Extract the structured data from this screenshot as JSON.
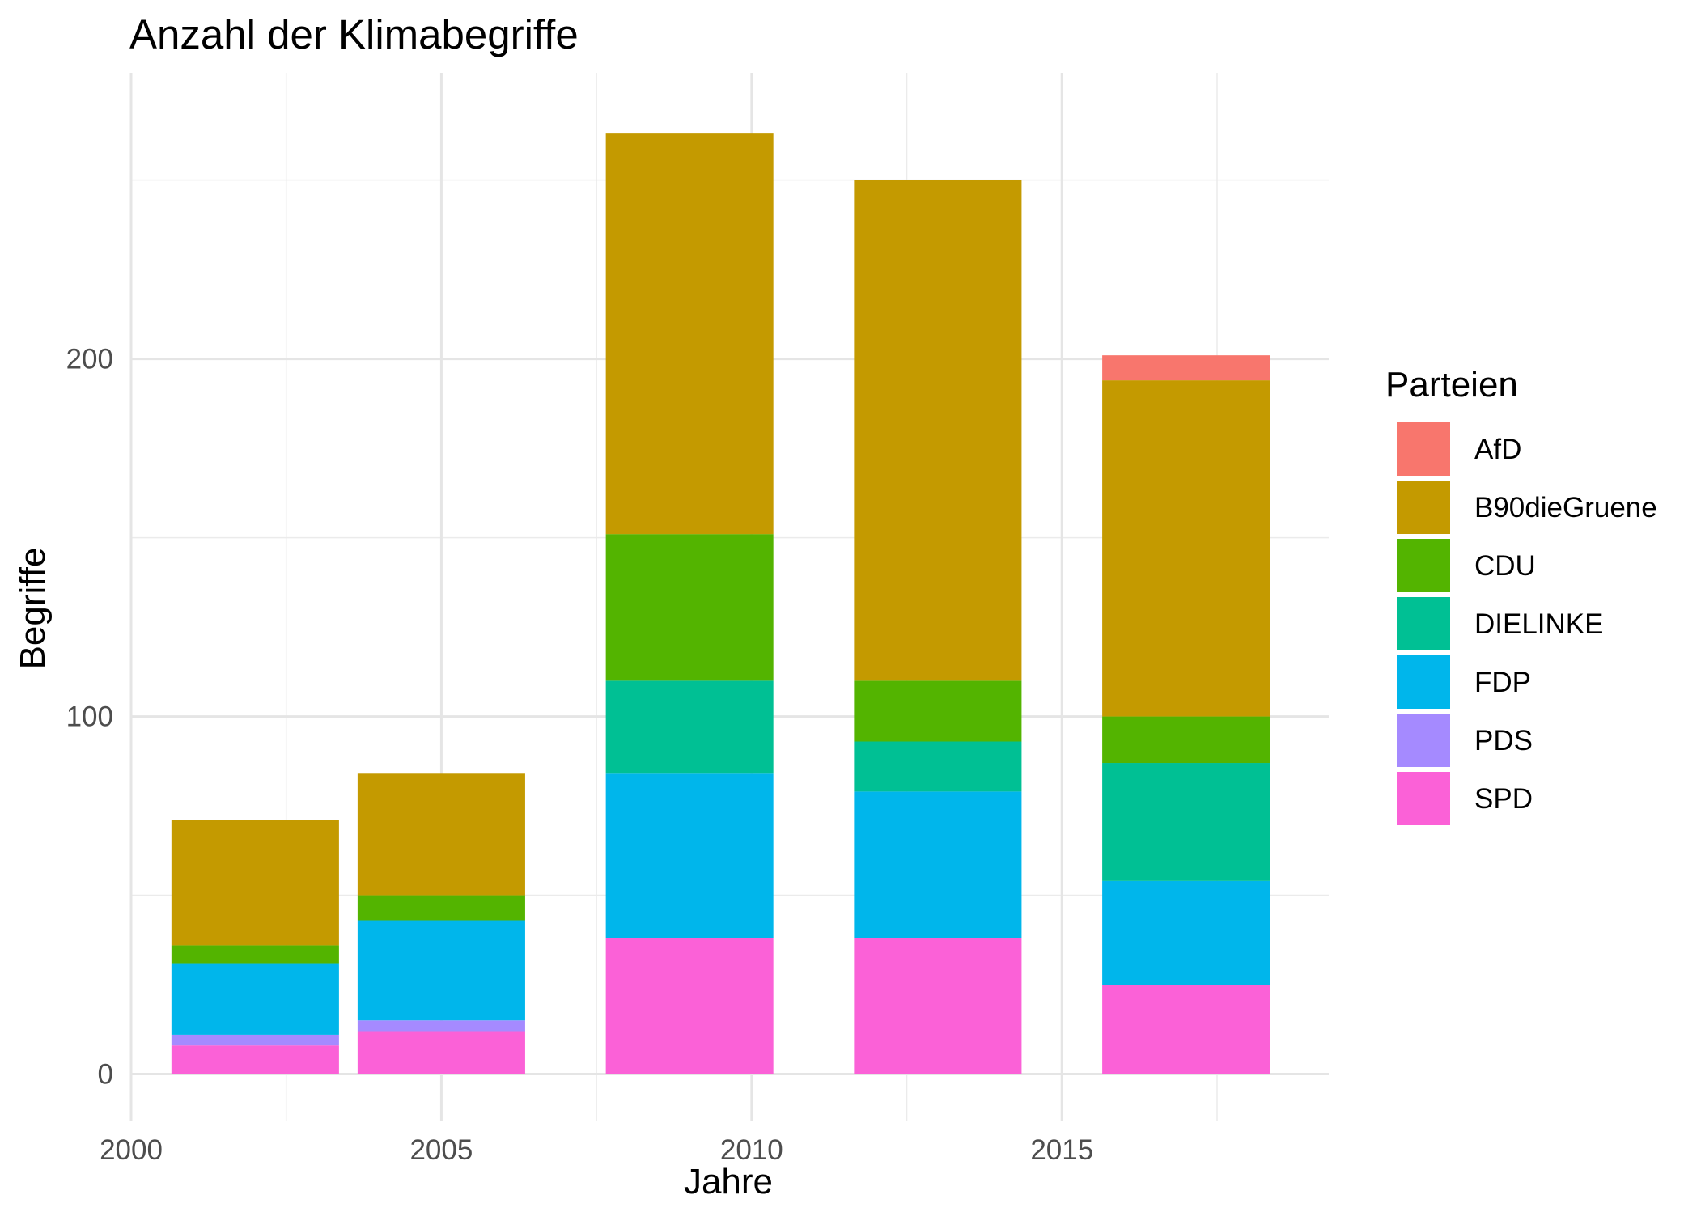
{
  "chart_data": {
    "type": "bar",
    "stacked": true,
    "title": "Anzahl der Klimabegriffe",
    "xlabel": "Jahre",
    "ylabel": "Begriffe",
    "x": [
      2002,
      2005,
      2009,
      2013,
      2017
    ],
    "xlim": [
      2000,
      2019.3
    ],
    "ylim": [
      -13,
      280
    ],
    "x_ticks": [
      "2000",
      "2005",
      "2010",
      "2015"
    ],
    "y_ticks": [
      "0",
      "100",
      "200"
    ],
    "grid": true,
    "legend_title": "Parteien",
    "legend_position": "right",
    "series": [
      {
        "name": "SPD",
        "color": "#FB61D7",
        "values": [
          8,
          12,
          38,
          38,
          25
        ]
      },
      {
        "name": "PDS",
        "color": "#A58AFF",
        "values": [
          3,
          3,
          0,
          0,
          0
        ]
      },
      {
        "name": "FDP",
        "color": "#00B6EB",
        "values": [
          20,
          28,
          46,
          41,
          29
        ]
      },
      {
        "name": "DIELINKE",
        "color": "#00C094",
        "values": [
          0,
          0,
          26,
          14,
          33
        ]
      },
      {
        "name": "CDU",
        "color": "#53B400",
        "values": [
          5,
          7,
          41,
          17,
          13
        ]
      },
      {
        "name": "B90dieGruene",
        "color": "#C49A00",
        "values": [
          35,
          34,
          112,
          140,
          94
        ]
      },
      {
        "name": "AfD",
        "color": "#F8766D",
        "values": [
          0,
          0,
          0,
          0,
          7
        ]
      }
    ],
    "legend_order": [
      "AfD",
      "B90dieGruene",
      "CDU",
      "DIELINKE",
      "FDP",
      "PDS",
      "SPD"
    ]
  }
}
